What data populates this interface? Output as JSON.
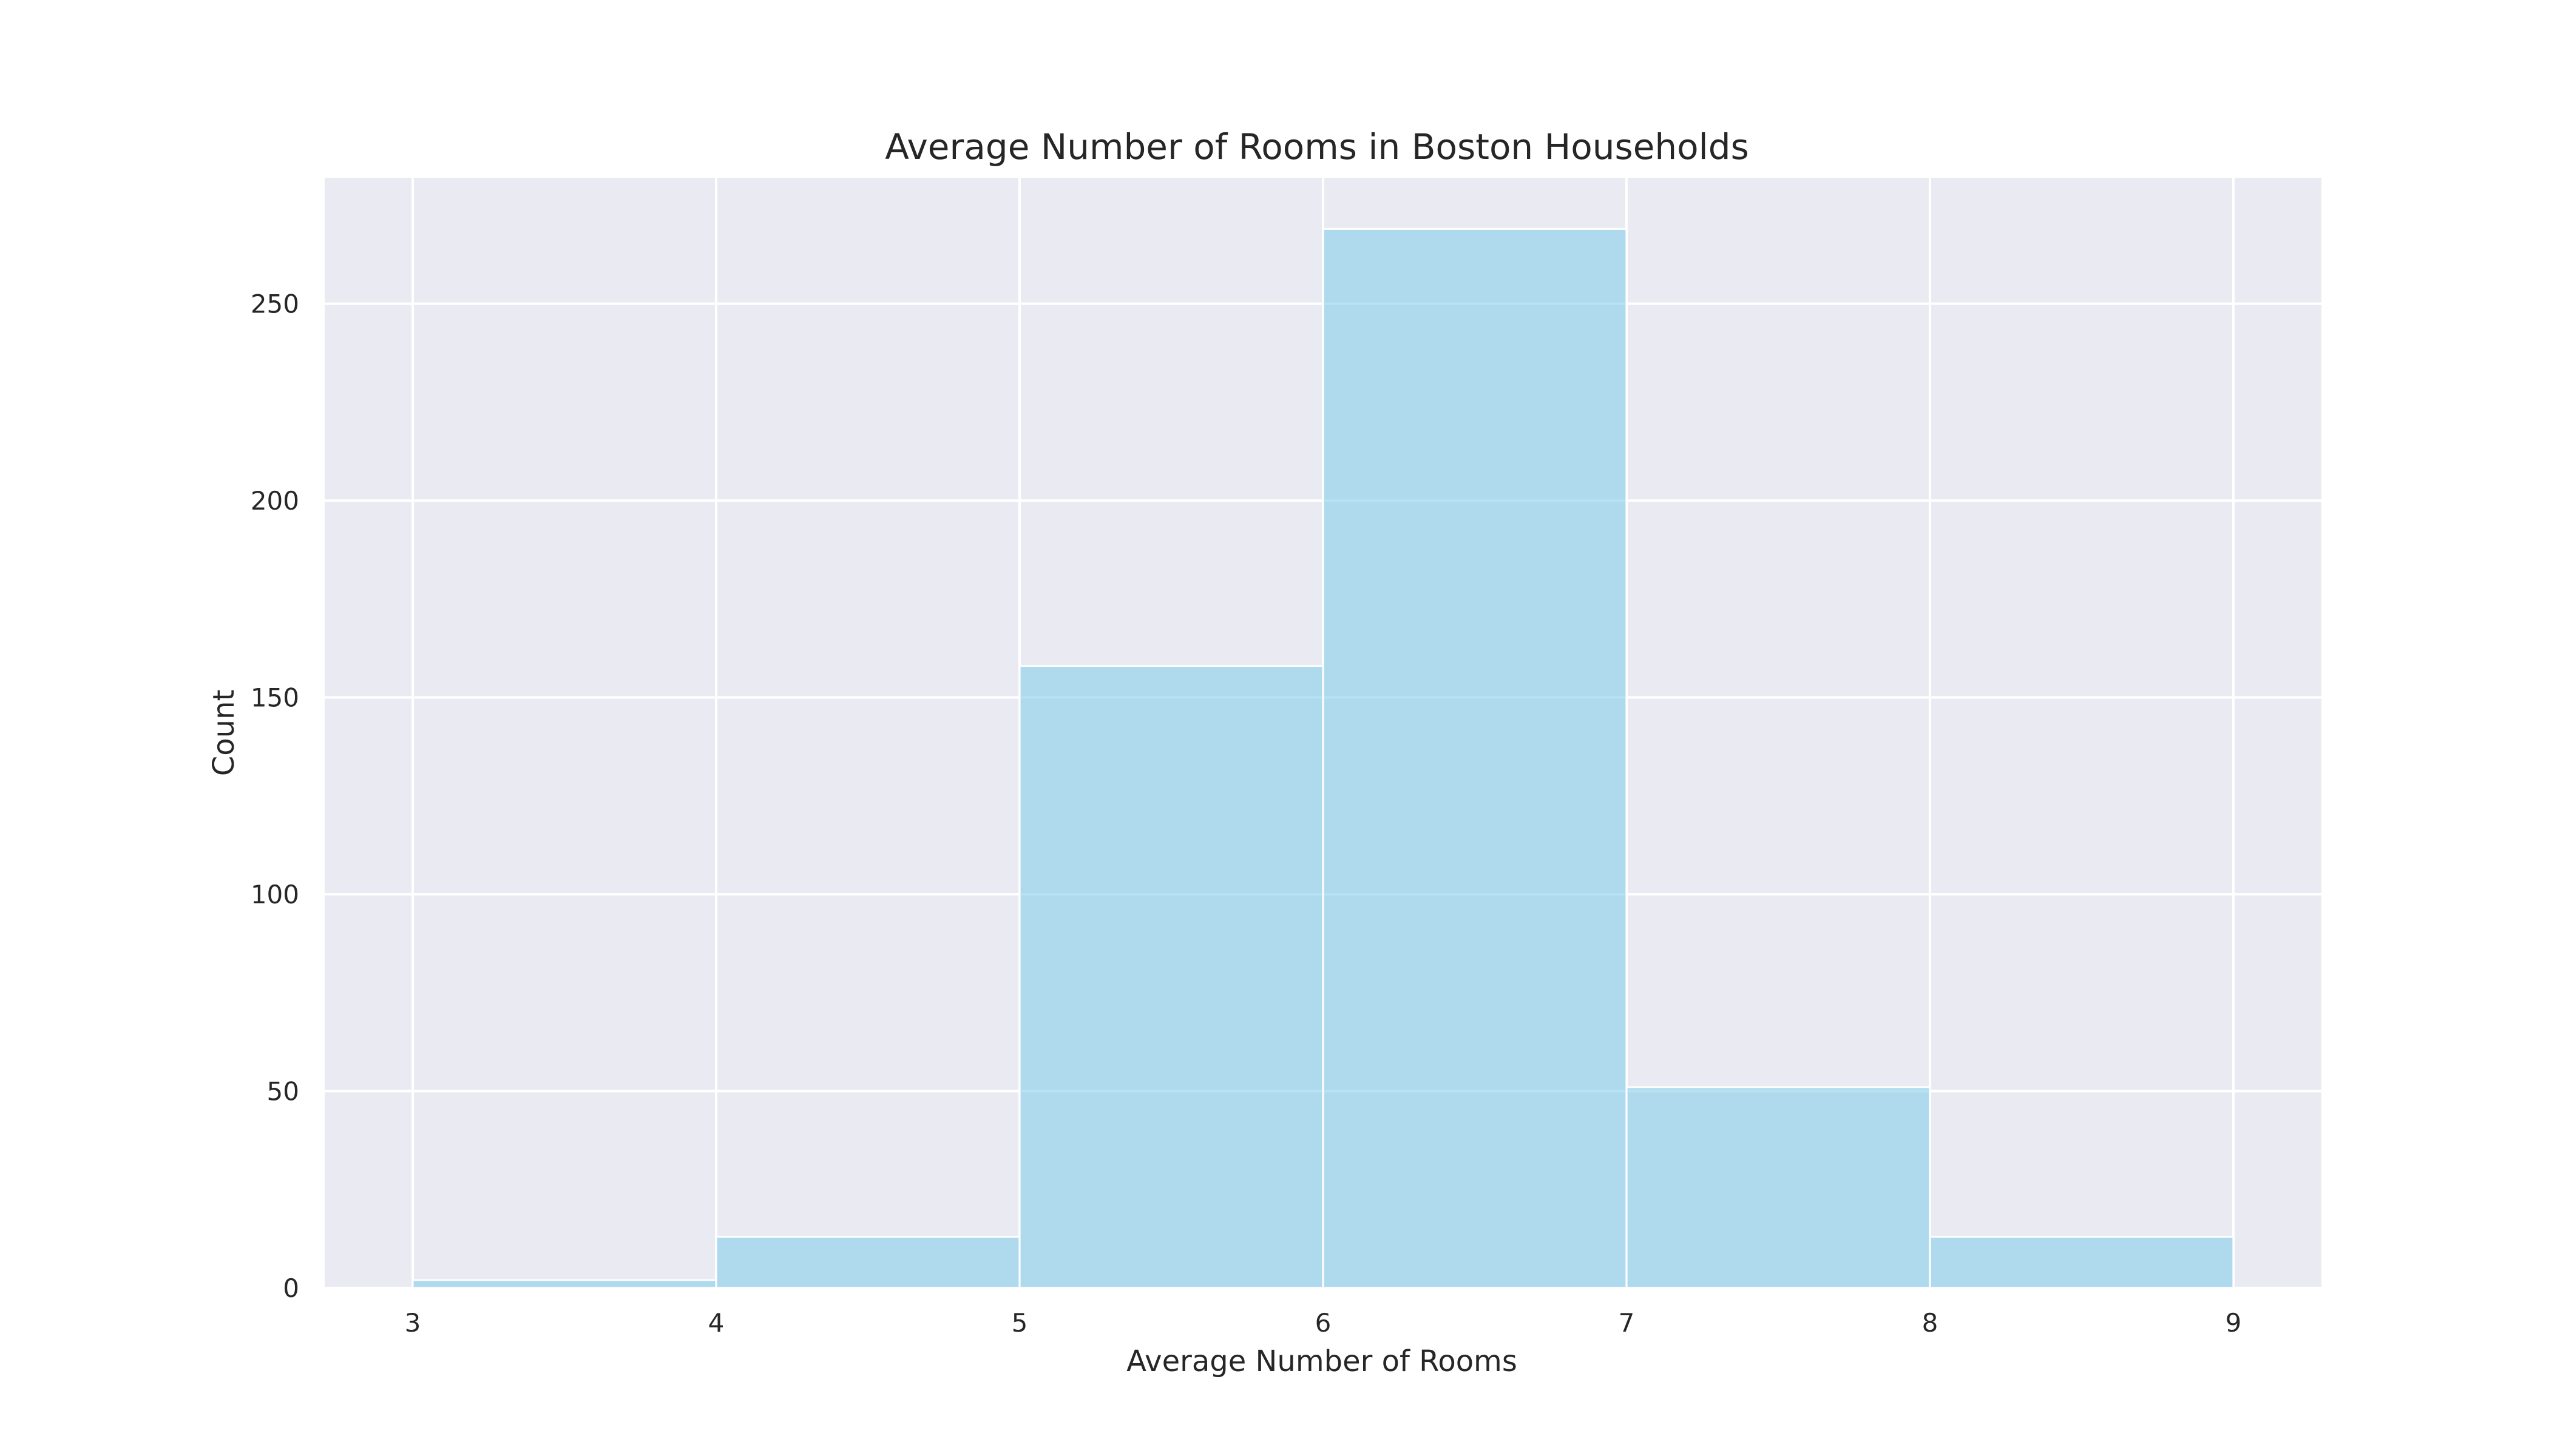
{
  "chart_data": {
    "type": "bar",
    "title": "Average Number of Rooms in Boston Households",
    "xlabel": "Average Number of Rooms",
    "ylabel": "Count",
    "bins": [
      {
        "start": 3,
        "end": 4,
        "count": 2
      },
      {
        "start": 4,
        "end": 5,
        "count": 13
      },
      {
        "start": 5,
        "end": 6,
        "count": 158
      },
      {
        "start": 6,
        "end": 7,
        "count": 269
      },
      {
        "start": 7,
        "end": 8,
        "count": 51
      },
      {
        "start": 8,
        "end": 9,
        "count": 13
      }
    ],
    "xticks": [
      3,
      4,
      5,
      6,
      7,
      8,
      9
    ],
    "yticks": [
      0,
      50,
      100,
      150,
      200,
      250
    ],
    "xlim": [
      2.71,
      9.29
    ],
    "ylim": [
      0,
      282
    ],
    "grid": true,
    "colors": {
      "bar": "#87ceeb",
      "background": "#eaeaf2"
    }
  }
}
